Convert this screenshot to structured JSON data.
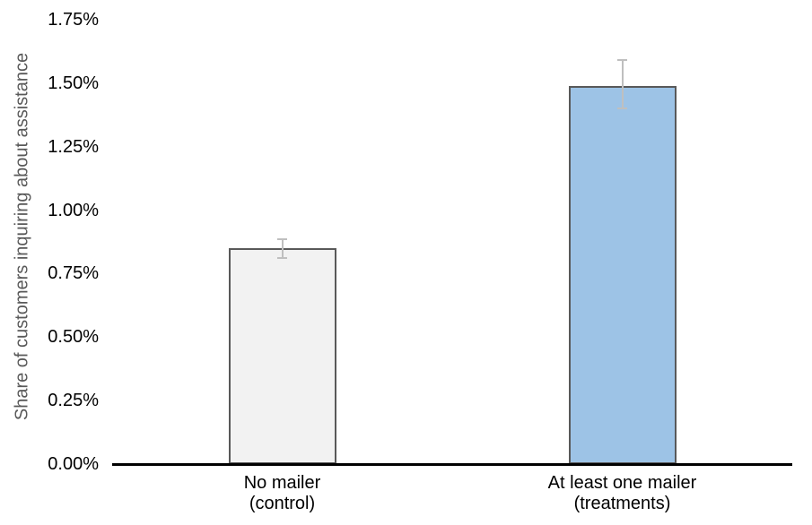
{
  "chart_data": {
    "type": "bar",
    "title": "",
    "xlabel": "",
    "ylabel": "Share of customers inquiring about assistance",
    "unit": "%",
    "ylim": [
      0,
      1.75
    ],
    "ytick_step": 0.25,
    "grid": false,
    "legend": false,
    "yticks": [
      {
        "value": 0,
        "label": "0.00%"
      },
      {
        "value": 0.25,
        "label": "0.25%"
      },
      {
        "value": 0.5,
        "label": "0.50%"
      },
      {
        "value": 0.75,
        "label": "0.75%"
      },
      {
        "value": 1.0,
        "label": "1.00%"
      },
      {
        "value": 1.25,
        "label": "1.25%"
      },
      {
        "value": 1.5,
        "label": "1.50%"
      },
      {
        "value": 1.75,
        "label": "1.75%"
      }
    ],
    "bars": [
      {
        "category": "No mailer (control)",
        "label_lines": [
          "No mailer",
          "(control)"
        ],
        "value": 0.85,
        "error_upper": 0.885,
        "error_lower": 0.81,
        "fill": "#F2F2F2"
      },
      {
        "category": "At least one mailer (treatments)",
        "label_lines": [
          "At least one mailer",
          "(treatments)"
        ],
        "value": 1.49,
        "error_upper": 1.59,
        "error_lower": 1.4,
        "fill": "#9DC3E6"
      }
    ],
    "style": {
      "bar_border": "#595959",
      "error_color": "#BFBFBF",
      "axis_color": "#000000",
      "tick_color": "#000000",
      "ylabel_color": "#595959",
      "category_color": "#000000",
      "background": "#FFFFFF"
    }
  }
}
